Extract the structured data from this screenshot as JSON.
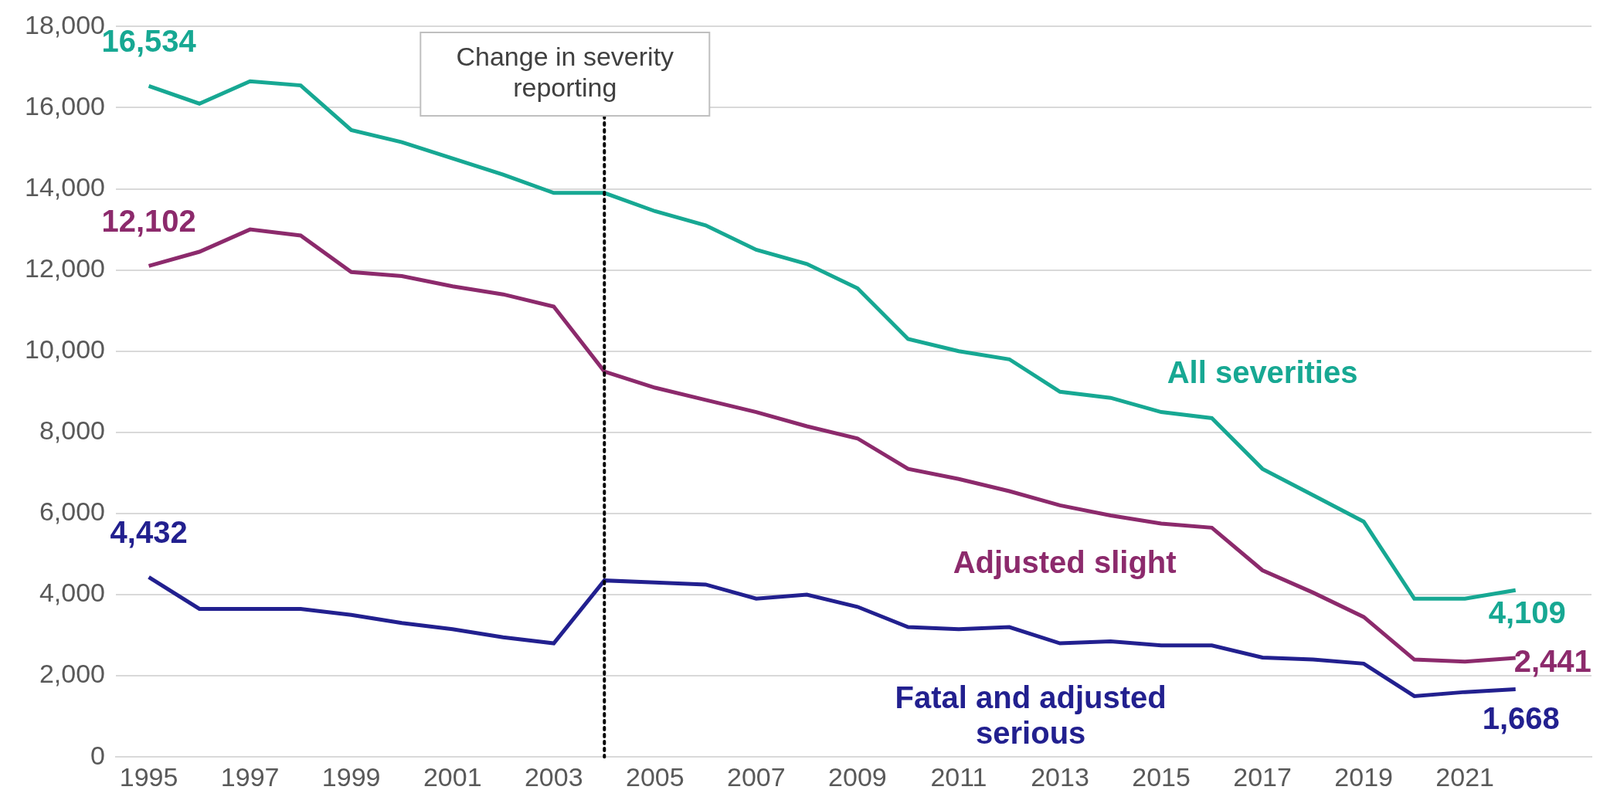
{
  "chart_data": {
    "type": "line",
    "x": [
      1995,
      1996,
      1997,
      1998,
      1999,
      2000,
      2001,
      2002,
      2003,
      2004,
      2005,
      2006,
      2007,
      2008,
      2009,
      2010,
      2011,
      2012,
      2013,
      2014,
      2015,
      2016,
      2017,
      2018,
      2019,
      2020,
      2021,
      2022
    ],
    "xlim": [
      1994.35,
      2023.5
    ],
    "xticks": [
      1995,
      1997,
      1999,
      2001,
      2003,
      2005,
      2007,
      2009,
      2011,
      2013,
      2015,
      2017,
      2019,
      2021
    ],
    "ylim": [
      0,
      18000
    ],
    "yticks": [
      0,
      {
        "value": 2000,
        "label": "2,000"
      },
      {
        "value": 4000,
        "label": "4,000"
      },
      {
        "value": 6000,
        "label": "6,000"
      },
      {
        "value": 8000,
        "label": "8,000"
      },
      {
        "value": 10000,
        "label": "10,000"
      },
      {
        "value": 12000,
        "label": "12,000"
      },
      {
        "value": 14000,
        "label": "14,000"
      },
      {
        "value": 16000,
        "label": "16,000"
      },
      {
        "value": 18000,
        "label": "18,000"
      }
    ],
    "grid": true,
    "series": [
      {
        "name": "All severities",
        "color": "#17a893",
        "values": [
          16534,
          16100,
          16650,
          16550,
          15450,
          15150,
          14750,
          14350,
          13900,
          13900,
          13450,
          13100,
          12500,
          12150,
          11550,
          10300,
          10000,
          9800,
          9000,
          8850,
          8500,
          8350,
          7100,
          6450,
          5800,
          3900,
          3900,
          4109
        ],
        "value_labels": [
          "16,534",
          null,
          null,
          null,
          null,
          null,
          null,
          null,
          null,
          null,
          null,
          null,
          null,
          null,
          null,
          null,
          null,
          null,
          null,
          null,
          null,
          null,
          null,
          null,
          null,
          null,
          null,
          "4,109"
        ]
      },
      {
        "name": "Adjusted slight",
        "color": "#8c2a6c",
        "values": [
          12102,
          12450,
          13000,
          12850,
          11950,
          11850,
          11600,
          11400,
          11100,
          9500,
          9100,
          8800,
          8500,
          8150,
          7850,
          7100,
          6850,
          6550,
          6200,
          5950,
          5750,
          5650,
          4600,
          4050,
          3450,
          2400,
          2350,
          2441
        ],
        "value_labels": [
          "12,102",
          null,
          null,
          null,
          null,
          null,
          null,
          null,
          null,
          null,
          null,
          null,
          null,
          null,
          null,
          null,
          null,
          null,
          null,
          null,
          null,
          null,
          null,
          null,
          null,
          null,
          null,
          "2,441"
        ]
      },
      {
        "name": "Fatal and adjusted serious",
        "color": "#22208f",
        "values": [
          4432,
          3650,
          3650,
          3650,
          3500,
          3300,
          3150,
          2950,
          2800,
          4350,
          4300,
          4250,
          3900,
          4000,
          3700,
          3200,
          3150,
          3200,
          2800,
          2850,
          2750,
          2750,
          2450,
          2400,
          2300,
          1500,
          1600,
          1668
        ],
        "value_labels": [
          "4,432",
          null,
          null,
          null,
          null,
          null,
          null,
          null,
          null,
          null,
          null,
          null,
          null,
          null,
          null,
          null,
          null,
          null,
          null,
          null,
          null,
          null,
          null,
          null,
          null,
          null,
          null,
          "1,668"
        ]
      }
    ],
    "annotations": [
      {
        "text": "Change in severity reporting",
        "x": 2004
      }
    ]
  }
}
